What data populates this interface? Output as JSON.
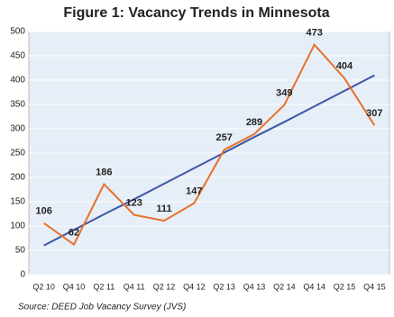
{
  "chart_data": {
    "type": "line",
    "title": "Figure 1: Vacancy Trends in Minnesota",
    "source": "Source: DEED Job Vacancy Survey (JVS)",
    "categories": [
      "Q2 10",
      "Q4 10",
      "Q2 11",
      "Q4 11",
      "Q2 12",
      "Q4 12",
      "Q2 13",
      "Q4 13",
      "Q2 14",
      "Q4 14",
      "Q2 15",
      "Q4 15"
    ],
    "series": [
      {
        "color": "#e8702a",
        "values": [
          106,
          62,
          186,
          123,
          111,
          147,
          257,
          289,
          349,
          473,
          404,
          307
        ],
        "data_labels": true
      },
      {
        "color": "#3c57a6",
        "values": [
          60,
          92,
          124,
          155,
          187,
          219,
          251,
          283,
          314,
          346,
          378,
          410
        ],
        "data_labels": false
      }
    ],
    "ylim": [
      0,
      500
    ],
    "yticks": [
      0,
      50,
      100,
      150,
      200,
      250,
      300,
      350,
      400,
      450,
      500
    ],
    "grid": true
  }
}
